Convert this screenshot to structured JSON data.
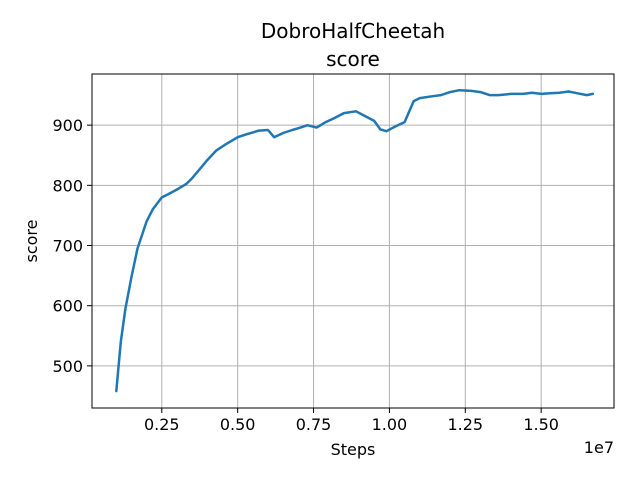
{
  "chart_data": {
    "type": "line",
    "title": "DobroHalfCheetah",
    "subtitle": "score",
    "xlabel": "Steps",
    "ylabel": "score",
    "x_offset_label": "1e7",
    "x_scale": 10000000,
    "xlim": [
      0.2,
      17.4
    ],
    "ylim": [
      430,
      985
    ],
    "x_ticks": [
      2.5,
      5.0,
      7.5,
      10.0,
      12.5,
      15.0
    ],
    "x_tick_labels": [
      "0.25",
      "0.50",
      "0.75",
      "1.00",
      "1.25",
      "1.50"
    ],
    "y_ticks": [
      500,
      600,
      700,
      800,
      900
    ],
    "y_tick_labels": [
      "500",
      "600",
      "700",
      "800",
      "900"
    ],
    "grid": true,
    "series": [
      {
        "color": "#1f77b4",
        "x": [
          1.0,
          1.15,
          1.3,
          1.5,
          1.7,
          2.0,
          2.2,
          2.5,
          2.7,
          3.0,
          3.3,
          3.5,
          3.8,
          4.0,
          4.3,
          4.6,
          5.0,
          5.3,
          5.7,
          6.0,
          6.2,
          6.5,
          6.8,
          7.0,
          7.3,
          7.6,
          7.9,
          8.2,
          8.5,
          8.9,
          9.2,
          9.5,
          9.7,
          9.9,
          10.2,
          10.5,
          10.8,
          11.0,
          11.4,
          11.7,
          12.0,
          12.3,
          12.7,
          13.0,
          13.3,
          13.6,
          14.0,
          14.4,
          14.7,
          15.0,
          15.3,
          15.6,
          15.9,
          16.2,
          16.5,
          16.7
        ],
        "y": [
          458,
          540,
          595,
          648,
          695,
          740,
          760,
          780,
          785,
          793,
          802,
          812,
          830,
          842,
          858,
          868,
          880,
          885,
          891,
          892,
          880,
          887,
          892,
          895,
          900,
          896,
          905,
          912,
          920,
          923,
          915,
          907,
          893,
          890,
          898,
          905,
          940,
          945,
          948,
          950,
          955,
          958,
          957,
          955,
          950,
          950,
          952,
          952,
          954,
          952,
          953,
          954,
          956,
          953,
          950,
          952
        ]
      }
    ]
  }
}
